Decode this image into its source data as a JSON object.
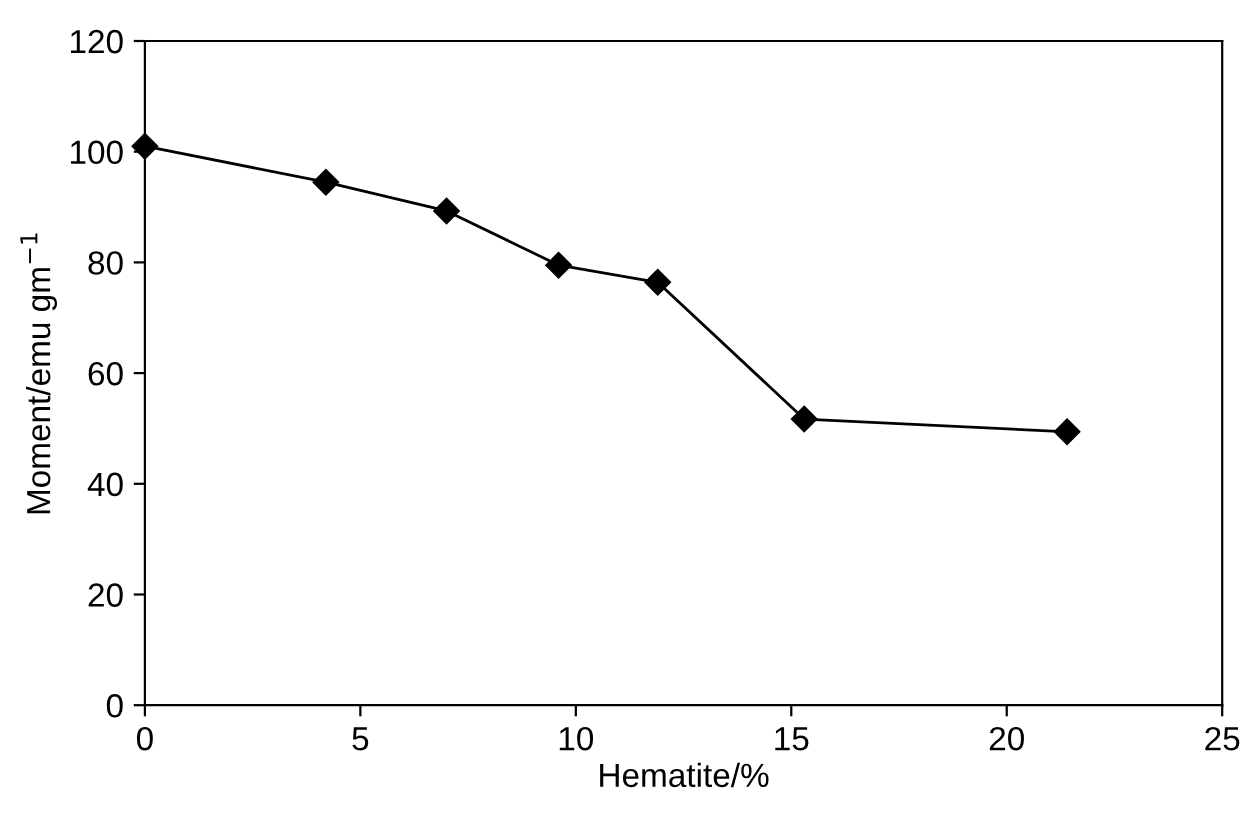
{
  "chart_data": {
    "type": "line",
    "xlabel": "Hematite/%",
    "ylabel": "Moment/emu gm$^{−1}$",
    "x": [
      0,
      4.2,
      7.0,
      9.6,
      11.9,
      15.3,
      21.4
    ],
    "series": [
      {
        "color": "#000000",
        "values": [
          101,
          94.5,
          89.3,
          79.5,
          76.4,
          51.7,
          49.4
        ]
      }
    ],
    "xlim": [
      0,
      25
    ],
    "xticks": [
      0,
      5,
      10,
      15,
      20,
      25
    ],
    "ylim": [
      0,
      120
    ],
    "yticks": [
      0,
      20,
      40,
      60,
      80,
      100,
      120
    ],
    "marker": "diamond",
    "line_style": "solid",
    "grid": false,
    "legend": false
  }
}
